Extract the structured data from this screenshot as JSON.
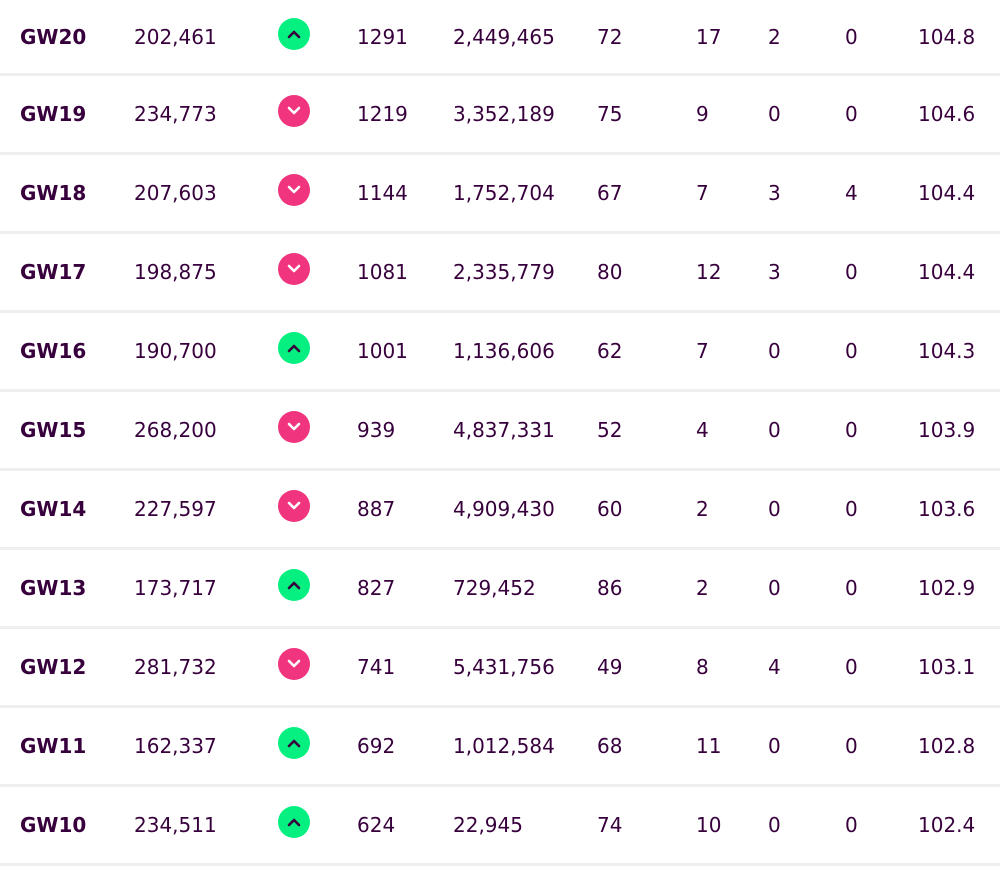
{
  "colors": {
    "text": "#37003c",
    "up": "#05f080",
    "down": "#f0357e",
    "divider": "#efefef"
  },
  "icons": {
    "up": "chevron-up-icon",
    "down": "chevron-down-icon"
  },
  "rows": [
    {
      "gw": "GW20",
      "points": "202,461",
      "movement": "up",
      "total": "1291",
      "rank": "2,449,465",
      "bench": "72",
      "transfers": "17",
      "cost": "2",
      "hits": "0",
      "value": "104.8"
    },
    {
      "gw": "GW19",
      "points": "234,773",
      "movement": "down",
      "total": "1219",
      "rank": "3,352,189",
      "bench": "75",
      "transfers": "9",
      "cost": "0",
      "hits": "0",
      "value": "104.6"
    },
    {
      "gw": "GW18",
      "points": "207,603",
      "movement": "down",
      "total": "1144",
      "rank": "1,752,704",
      "bench": "67",
      "transfers": "7",
      "cost": "3",
      "hits": "4",
      "value": "104.4"
    },
    {
      "gw": "GW17",
      "points": "198,875",
      "movement": "down",
      "total": "1081",
      "rank": "2,335,779",
      "bench": "80",
      "transfers": "12",
      "cost": "3",
      "hits": "0",
      "value": "104.4"
    },
    {
      "gw": "GW16",
      "points": "190,700",
      "movement": "up",
      "total": "1001",
      "rank": "1,136,606",
      "bench": "62",
      "transfers": "7",
      "cost": "0",
      "hits": "0",
      "value": "104.3"
    },
    {
      "gw": "GW15",
      "points": "268,200",
      "movement": "down",
      "total": "939",
      "rank": "4,837,331",
      "bench": "52",
      "transfers": "4",
      "cost": "0",
      "hits": "0",
      "value": "103.9"
    },
    {
      "gw": "GW14",
      "points": "227,597",
      "movement": "down",
      "total": "887",
      "rank": "4,909,430",
      "bench": "60",
      "transfers": "2",
      "cost": "0",
      "hits": "0",
      "value": "103.6"
    },
    {
      "gw": "GW13",
      "points": "173,717",
      "movement": "up",
      "total": "827",
      "rank": "729,452",
      "bench": "86",
      "transfers": "2",
      "cost": "0",
      "hits": "0",
      "value": "102.9"
    },
    {
      "gw": "GW12",
      "points": "281,732",
      "movement": "down",
      "total": "741",
      "rank": "5,431,756",
      "bench": "49",
      "transfers": "8",
      "cost": "4",
      "hits": "0",
      "value": "103.1"
    },
    {
      "gw": "GW11",
      "points": "162,337",
      "movement": "up",
      "total": "692",
      "rank": "1,012,584",
      "bench": "68",
      "transfers": "11",
      "cost": "0",
      "hits": "0",
      "value": "102.8"
    },
    {
      "gw": "GW10",
      "points": "234,511",
      "movement": "up",
      "total": "624",
      "rank": "22,945",
      "bench": "74",
      "transfers": "10",
      "cost": "0",
      "hits": "0",
      "value": "102.4"
    }
  ]
}
